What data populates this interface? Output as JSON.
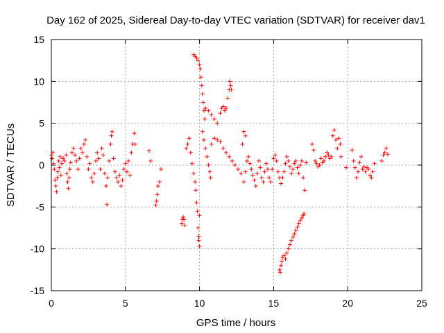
{
  "chart_data": {
    "type": "scatter",
    "title": "Day 162 of 2025, Sidereal Day-to-day VTEC variation (SDTVAR) for receiver dav1",
    "xlabel": "GPS time / hours",
    "ylabel": "SDTVAR / TECUs",
    "xlim": [
      0,
      25
    ],
    "ylim": [
      -15,
      15
    ],
    "xticks": [
      "0",
      "5",
      "10",
      "15",
      "20",
      "25"
    ],
    "yticks": [
      "15",
      "10",
      "5",
      "0",
      "-5",
      "-10",
      "-15"
    ],
    "grid": true,
    "marker": "plus",
    "color": "#ff0000",
    "series": [
      {
        "name": "SDTVAR",
        "points": [
          [
            0.0,
            1.2
          ],
          [
            0.05,
            0.8
          ],
          [
            0.1,
            1.5
          ],
          [
            0.15,
            0.2
          ],
          [
            0.2,
            -0.5
          ],
          [
            0.25,
            -1.8
          ],
          [
            0.3,
            -2.5
          ],
          [
            0.35,
            -3.2
          ],
          [
            0.4,
            -1.5
          ],
          [
            0.45,
            -0.8
          ],
          [
            0.5,
            0.5
          ],
          [
            0.55,
            -0.3
          ],
          [
            0.6,
            1.0
          ],
          [
            0.65,
            -1.2
          ],
          [
            0.7,
            0.2
          ],
          [
            0.8,
            0.8
          ],
          [
            0.9,
            0.5
          ],
          [
            1.0,
            1.2
          ],
          [
            1.05,
            -1.0
          ],
          [
            1.1,
            -2.0
          ],
          [
            1.15,
            -2.8
          ],
          [
            1.2,
            -1.5
          ],
          [
            1.25,
            -0.5
          ],
          [
            1.3,
            0.3
          ],
          [
            1.4,
            1.5
          ],
          [
            1.5,
            2.0
          ],
          [
            1.6,
            1.2
          ],
          [
            1.7,
            0.5
          ],
          [
            1.8,
            -0.5
          ],
          [
            1.9,
            0.8
          ],
          [
            2.0,
            2.0
          ],
          [
            2.1,
            1.5
          ],
          [
            2.2,
            2.5
          ],
          [
            2.3,
            3.0
          ],
          [
            2.4,
            1.0
          ],
          [
            2.5,
            -0.5
          ],
          [
            2.6,
            0.2
          ],
          [
            2.7,
            -1.5
          ],
          [
            2.8,
            -2.0
          ],
          [
            2.9,
            -1.0
          ],
          [
            3.0,
            0.5
          ],
          [
            3.1,
            1.5
          ],
          [
            3.2,
            0.8
          ],
          [
            3.3,
            -0.5
          ],
          [
            3.4,
            2.0
          ],
          [
            3.5,
            1.2
          ],
          [
            3.6,
            -1.0
          ],
          [
            3.7,
            -2.5
          ],
          [
            3.75,
            -4.7
          ],
          [
            3.8,
            -1.5
          ],
          [
            3.9,
            0.5
          ],
          [
            4.0,
            2.5
          ],
          [
            4.05,
            3.5
          ],
          [
            4.1,
            4.0
          ],
          [
            4.2,
            0.8
          ],
          [
            4.3,
            -0.8
          ],
          [
            4.4,
            -1.5
          ],
          [
            4.5,
            -2.0
          ],
          [
            4.6,
            -1.2
          ],
          [
            4.7,
            -2.5
          ],
          [
            4.8,
            -1.8
          ],
          [
            4.9,
            -0.5
          ],
          [
            5.0,
            0.2
          ],
          [
            5.1,
            -0.8
          ],
          [
            5.2,
            0.5
          ],
          [
            5.3,
            -1.2
          ],
          [
            5.4,
            1.5
          ],
          [
            5.5,
            2.5
          ],
          [
            5.6,
            3.8
          ],
          [
            5.65,
            2.5
          ],
          [
            6.6,
            1.7
          ],
          [
            6.7,
            0.5
          ],
          [
            7.05,
            -4.8
          ],
          [
            7.1,
            -4.3
          ],
          [
            7.15,
            -3.5
          ],
          [
            7.2,
            -2.5
          ],
          [
            7.3,
            -2.0
          ],
          [
            7.4,
            -0.5
          ],
          [
            8.8,
            -7.0
          ],
          [
            8.85,
            -6.5
          ],
          [
            8.9,
            -6.2
          ],
          [
            8.95,
            -6.5
          ],
          [
            9.0,
            -7.2
          ],
          [
            9.1,
            2.0
          ],
          [
            9.2,
            2.5
          ],
          [
            9.3,
            3.2
          ],
          [
            9.4,
            1.5
          ],
          [
            9.5,
            0.2
          ],
          [
            9.6,
            -1.0
          ],
          [
            9.7,
            -2.0
          ],
          [
            9.75,
            -3.0
          ],
          [
            9.8,
            -4.5
          ],
          [
            9.85,
            -5.5
          ],
          [
            9.9,
            -7.5
          ],
          [
            9.95,
            -9.0
          ],
          [
            10.0,
            -9.7
          ],
          [
            9.95,
            -8.5
          ],
          [
            10.0,
            -6.0
          ],
          [
            9.6,
            13.2
          ],
          [
            9.7,
            13.0
          ],
          [
            9.8,
            12.8
          ],
          [
            9.9,
            12.5
          ],
          [
            10.0,
            12.0
          ],
          [
            10.05,
            11.5
          ],
          [
            10.1,
            10.5
          ],
          [
            10.15,
            9.5
          ],
          [
            10.2,
            8.5
          ],
          [
            10.25,
            7.5
          ],
          [
            10.3,
            6.5
          ],
          [
            10.35,
            5.5
          ],
          [
            10.2,
            4.0
          ],
          [
            10.3,
            3.0
          ],
          [
            10.4,
            2.0
          ],
          [
            10.5,
            1.0
          ],
          [
            10.6,
            0.0
          ],
          [
            10.7,
            -0.8
          ],
          [
            10.75,
            -1.5
          ],
          [
            10.4,
            6.8
          ],
          [
            10.6,
            6.5
          ],
          [
            10.8,
            6.0
          ],
          [
            11.0,
            5.5
          ],
          [
            11.2,
            5.0
          ],
          [
            11.4,
            6.2
          ],
          [
            11.5,
            6.8
          ],
          [
            11.6,
            7.0
          ],
          [
            11.7,
            6.5
          ],
          [
            11.8,
            6.8
          ],
          [
            11.9,
            8.0
          ],
          [
            12.0,
            9.0
          ],
          [
            12.05,
            10.0
          ],
          [
            12.1,
            9.5
          ],
          [
            12.15,
            9.0
          ],
          [
            10.8,
            2.5
          ],
          [
            11.0,
            3.2
          ],
          [
            11.2,
            3.0
          ],
          [
            11.4,
            2.8
          ],
          [
            11.6,
            2.0
          ],
          [
            11.8,
            1.5
          ],
          [
            12.0,
            1.0
          ],
          [
            12.2,
            0.5
          ],
          [
            12.4,
            0.0
          ],
          [
            12.6,
            -0.5
          ],
          [
            12.8,
            -1.0
          ],
          [
            13.0,
            -2.0
          ],
          [
            13.1,
            -0.8
          ],
          [
            13.2,
            0.5
          ],
          [
            13.3,
            1.0
          ],
          [
            13.4,
            0.2
          ],
          [
            13.5,
            -0.5
          ],
          [
            13.6,
            -1.2
          ],
          [
            13.7,
            -1.8
          ],
          [
            13.8,
            -2.5
          ],
          [
            13.9,
            -1.0
          ],
          [
            14.0,
            0.5
          ],
          [
            14.1,
            -0.3
          ],
          [
            14.2,
            -1.5
          ],
          [
            14.3,
            -2.0
          ],
          [
            14.4,
            -0.8
          ],
          [
            14.5,
            0.2
          ],
          [
            14.6,
            -0.5
          ],
          [
            14.7,
            -1.5
          ],
          [
            14.8,
            -2.0
          ],
          [
            14.9,
            -0.5
          ],
          [
            15.0,
            0.8
          ],
          [
            15.1,
            1.2
          ],
          [
            15.2,
            0.5
          ],
          [
            15.3,
            -0.8
          ],
          [
            15.4,
            -1.5
          ],
          [
            15.5,
            -2.2
          ],
          [
            15.6,
            -1.5
          ],
          [
            15.7,
            -0.8
          ],
          [
            15.8,
            0.2
          ],
          [
            15.9,
            1.0
          ],
          [
            16.0,
            0.5
          ],
          [
            16.1,
            -0.2
          ],
          [
            16.2,
            -1.0
          ],
          [
            16.3,
            -0.5
          ],
          [
            16.4,
            0.2
          ],
          [
            16.5,
            0.5
          ],
          [
            16.6,
            -0.3
          ],
          [
            16.7,
            -1.0
          ],
          [
            16.8,
            0.0
          ],
          [
            16.9,
            0.5
          ],
          [
            17.0,
            -1.5
          ],
          [
            17.1,
            -3.0
          ],
          [
            17.2,
            0.3
          ],
          [
            13.1,
            3.5
          ],
          [
            12.9,
            2.5
          ],
          [
            13.0,
            4.0
          ],
          [
            15.4,
            -12.5
          ],
          [
            15.45,
            -12.8
          ],
          [
            15.5,
            -12.0
          ],
          [
            15.55,
            -11.5
          ],
          [
            15.6,
            -11.0
          ],
          [
            15.7,
            -10.8
          ],
          [
            15.8,
            -11.2
          ],
          [
            15.9,
            -10.5
          ],
          [
            16.0,
            -10.0
          ],
          [
            16.1,
            -9.5
          ],
          [
            16.2,
            -9.0
          ],
          [
            16.3,
            -8.6
          ],
          [
            16.4,
            -8.2
          ],
          [
            16.5,
            -7.8
          ],
          [
            16.6,
            -7.4
          ],
          [
            16.7,
            -7.0
          ],
          [
            16.8,
            -6.6
          ],
          [
            16.9,
            -6.3
          ],
          [
            17.0,
            -6.0
          ],
          [
            17.05,
            -5.8
          ],
          [
            17.6,
            2.5
          ],
          [
            17.7,
            1.8
          ],
          [
            17.8,
            0.5
          ],
          [
            17.9,
            0.2
          ],
          [
            18.0,
            -0.2
          ],
          [
            18.1,
            0.0
          ],
          [
            18.2,
            0.8
          ],
          [
            18.3,
            0.3
          ],
          [
            18.4,
            0.5
          ],
          [
            18.5,
            1.0
          ],
          [
            18.6,
            1.5
          ],
          [
            18.7,
            1.2
          ],
          [
            18.8,
            0.8
          ],
          [
            18.9,
            1.0
          ],
          [
            19.0,
            3.5
          ],
          [
            19.1,
            4.2
          ],
          [
            19.2,
            3.0
          ],
          [
            19.3,
            2.0
          ],
          [
            19.4,
            3.2
          ],
          [
            19.5,
            2.5
          ],
          [
            19.55,
            1.0
          ],
          [
            19.9,
            -0.3
          ],
          [
            20.3,
            1.8
          ],
          [
            20.4,
            0.5
          ],
          [
            20.5,
            -0.3
          ],
          [
            20.6,
            -1.5
          ],
          [
            20.7,
            -0.8
          ],
          [
            20.8,
            0.3
          ],
          [
            20.9,
            1.0
          ],
          [
            21.0,
            -0.5
          ],
          [
            21.1,
            -0.2
          ],
          [
            21.2,
            -0.8
          ],
          [
            21.3,
            -0.3
          ],
          [
            21.4,
            -0.5
          ],
          [
            21.5,
            -1.2
          ],
          [
            21.6,
            -1.5
          ],
          [
            21.7,
            -0.8
          ],
          [
            21.8,
            0.2
          ],
          [
            22.3,
            0.5
          ],
          [
            22.4,
            1.2
          ],
          [
            22.5,
            1.5
          ],
          [
            22.6,
            2.0
          ],
          [
            22.7,
            1.3
          ]
        ]
      }
    ]
  }
}
